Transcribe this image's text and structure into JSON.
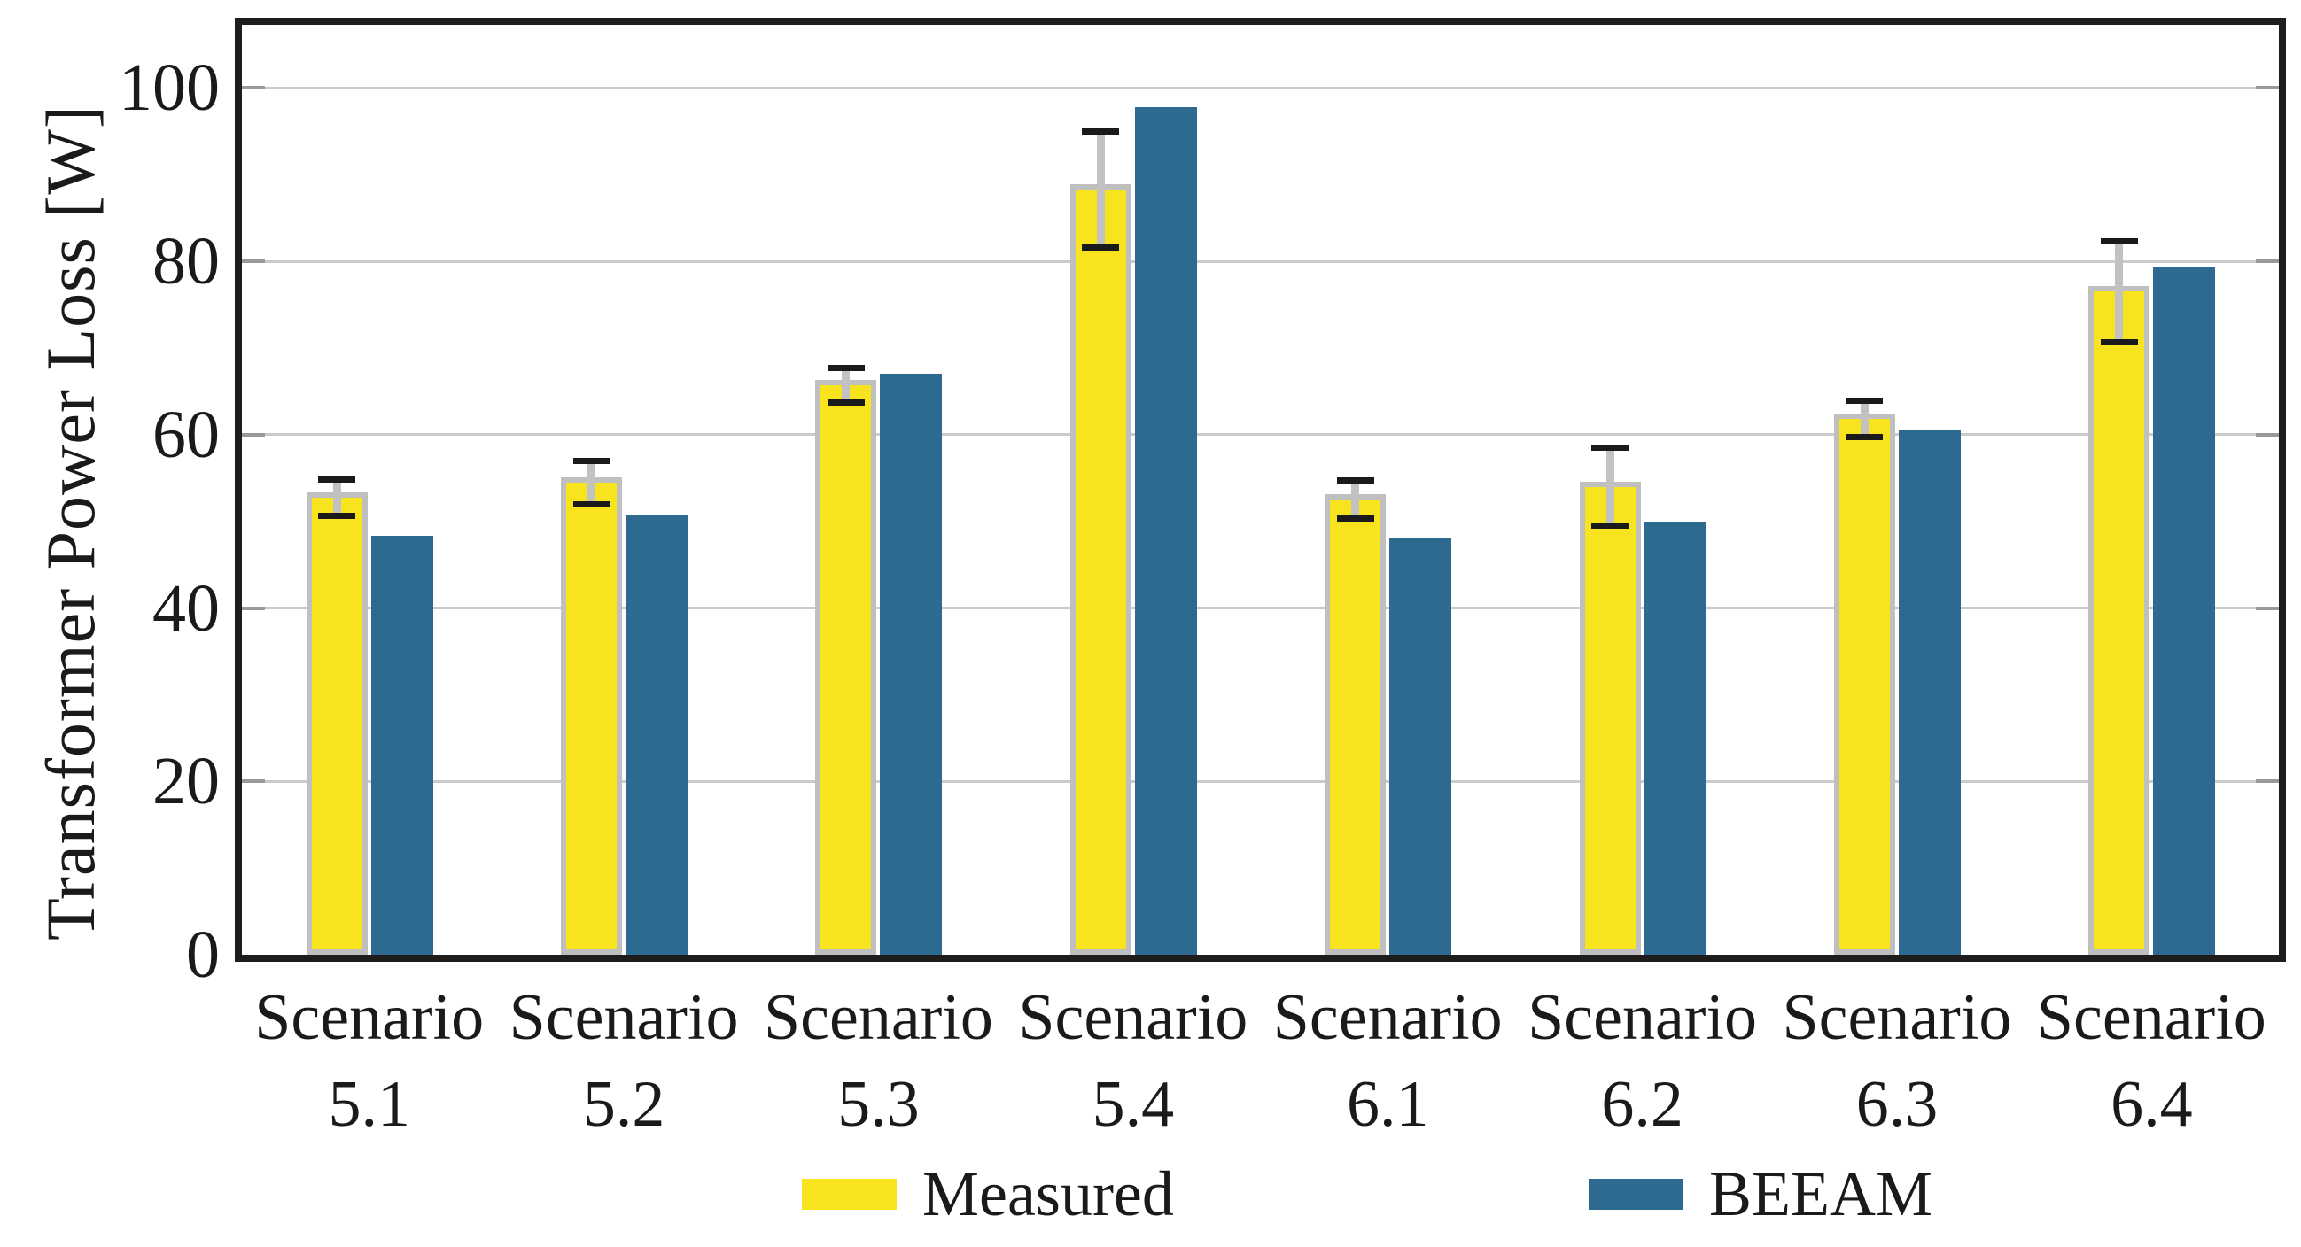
{
  "chart_data": {
    "type": "bar",
    "title": "",
    "ylabel": "Transformer Power Loss [W]",
    "xlabel": "",
    "ylim": [
      0,
      107.3
    ],
    "yticks": [
      0,
      20,
      40,
      60,
      80,
      100
    ],
    "grid": true,
    "legend_position": "bottom",
    "categories": [
      [
        "Scenario",
        "5.1"
      ],
      [
        "Scenario",
        "5.2"
      ],
      [
        "Scenario",
        "5.3"
      ],
      [
        "Scenario",
        "5.4"
      ],
      [
        "Scenario",
        "6.1"
      ],
      [
        "Scenario",
        "6.2"
      ],
      [
        "Scenario",
        "6.3"
      ],
      [
        "Scenario",
        "6.4"
      ]
    ],
    "series": [
      {
        "name": "Measured",
        "values": [
          52.7,
          54.5,
          65.7,
          88.3,
          52.5,
          54.0,
          61.8,
          76.5
        ],
        "errors": [
          2.1,
          2.5,
          2.0,
          6.7,
          2.2,
          4.5,
          2.1,
          5.8
        ],
        "fill": "#F8E41E",
        "border": "#BFBFBF"
      },
      {
        "name": "BEEAM",
        "values": [
          48.3,
          50.8,
          67.0,
          97.8,
          48.1,
          50.0,
          60.5,
          79.3
        ],
        "fill": "#2E6A90"
      }
    ],
    "colors": {
      "frame": "#1f1c1c",
      "gridline": "#cacaca",
      "tick": "#9a9a9a",
      "error_line": "#c2c2c2",
      "error_cap": "#1a1a1a",
      "text": "#1a1a1a"
    }
  }
}
